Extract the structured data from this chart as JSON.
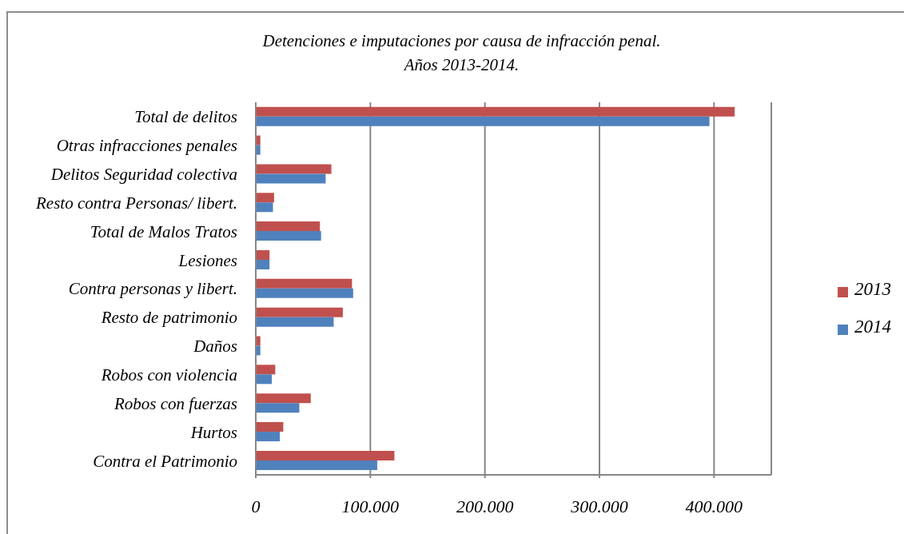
{
  "chart_data": {
    "type": "bar",
    "orientation": "horizontal",
    "title": "Detenciones e imputaciones por causa de infracción penal.\nAños 2013-2014.",
    "categories": [
      "Total de delitos",
      "Otras infracciones penales",
      "Delitos Seguridad colectiva",
      "Resto contra Personas/ libert.",
      "Total de Malos Tratos",
      "Lesiones",
      "Contra personas y libert.",
      "Resto de patrimonio",
      "Daños",
      "Robos con violencia",
      "Robos con fuerzas",
      "Hurtos",
      "Contra el Patrimonio"
    ],
    "series": [
      {
        "name": "2013",
        "color": "#c0504d",
        "values": [
          418000,
          4000,
          66000,
          16000,
          56000,
          12000,
          84000,
          76000,
          4000,
          17000,
          48000,
          24000,
          121000
        ]
      },
      {
        "name": "2014",
        "color": "#4f81bd",
        "values": [
          396000,
          4000,
          61000,
          15000,
          57000,
          12000,
          85000,
          68000,
          4000,
          14000,
          38000,
          21000,
          106000
        ]
      }
    ],
    "xlim": [
      0,
      450000
    ],
    "xticks": [
      0,
      {
        "value": 100000,
        "label": "100.000"
      },
      {
        "value": 200000,
        "label": "200.000"
      },
      {
        "value": 300000,
        "label": "300.000"
      },
      {
        "value": 400000,
        "label": "400.000"
      }
    ],
    "grid": "x",
    "legend": "right"
  }
}
